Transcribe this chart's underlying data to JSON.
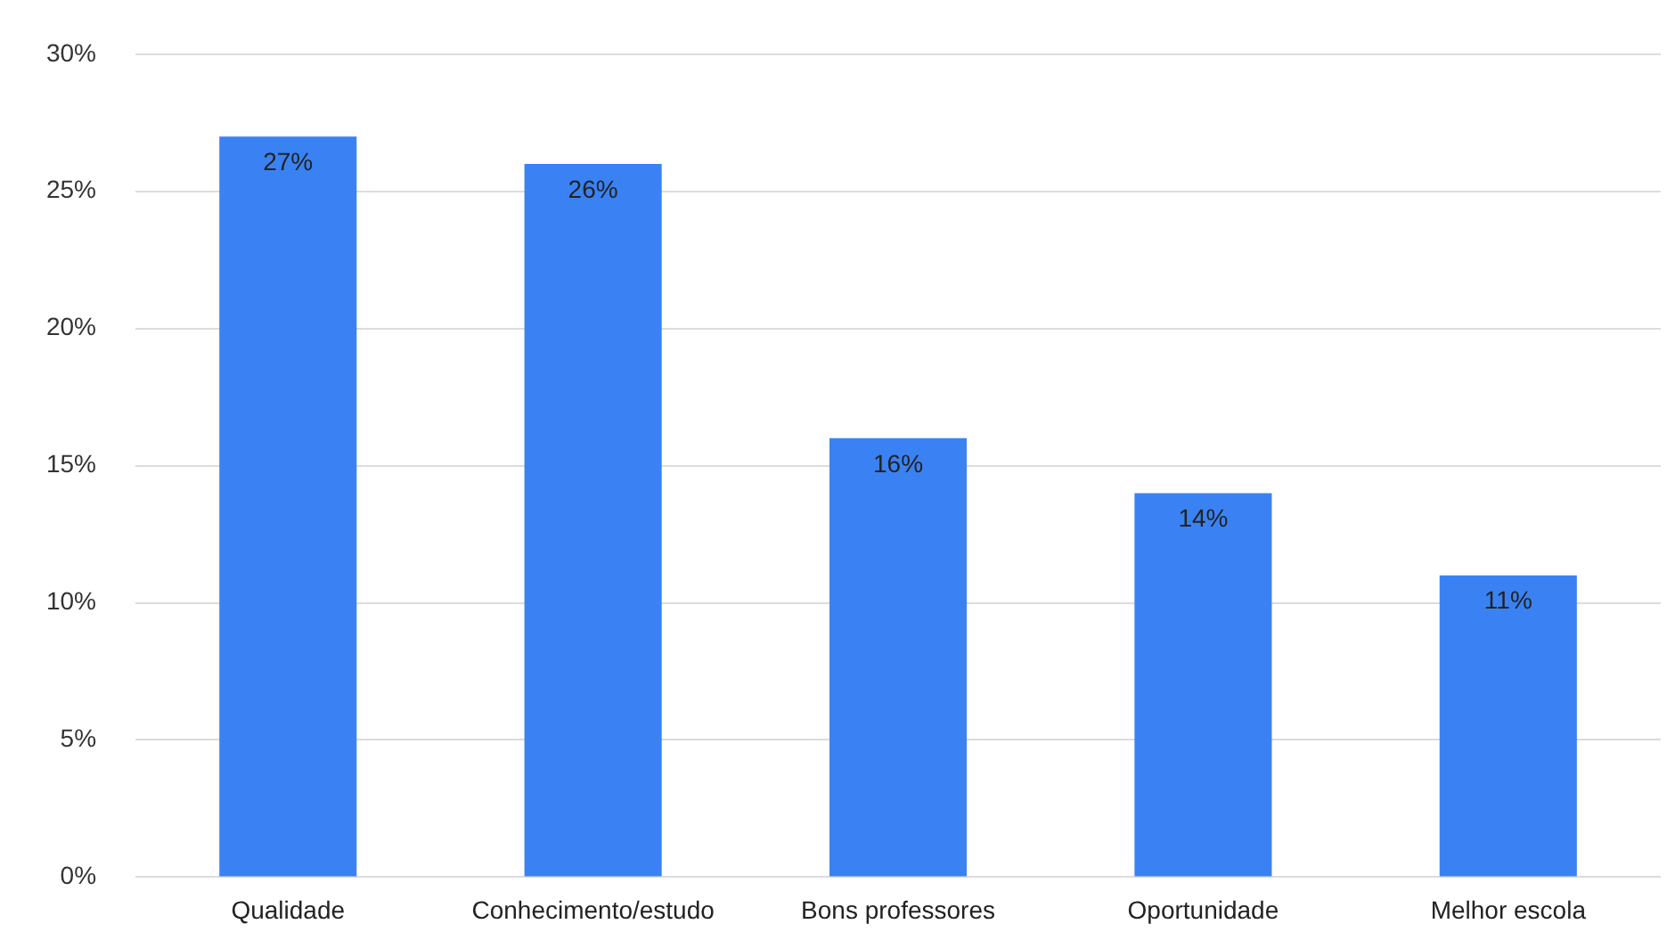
{
  "chart_data": {
    "type": "bar",
    "categories": [
      "Qualidade",
      "Conhecimento/estudo",
      "Bons professores",
      "Oportunidade",
      "Melhor escola"
    ],
    "values": [
      27,
      26,
      16,
      14,
      11
    ],
    "color": "#3a82f3",
    "value_labels": [
      "27%",
      "26%",
      "16%",
      "14%",
      "11%"
    ],
    "ylim": [
      0,
      30
    ],
    "yticks": [
      {
        "value": 0,
        "label": "0%"
      },
      {
        "value": 5,
        "label": "5%"
      },
      {
        "value": 10,
        "label": "10%"
      },
      {
        "value": 15,
        "label": "15%"
      },
      {
        "value": 20,
        "label": "20%"
      },
      {
        "value": 25,
        "label": "25%"
      },
      {
        "value": 30,
        "label": "30%"
      }
    ],
    "grid": "y"
  }
}
